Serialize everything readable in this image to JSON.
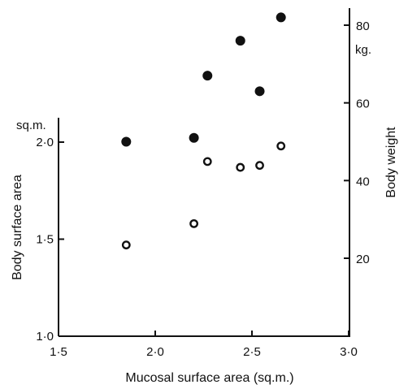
{
  "chart_data": {
    "type": "scatter",
    "xlabel": "Mucosal surface area (sq.m.)",
    "ylabel_left": "Body surface area",
    "ylabel_left_unit": "sq.m.",
    "ylabel_right": "Body weight",
    "ylabel_right_unit": "kg.",
    "xlim": [
      1.5,
      3.0
    ],
    "ylim_left": [
      1.0,
      2.1
    ],
    "ylim_right": [
      0,
      85
    ],
    "x_ticks": [
      {
        "value": 1.5,
        "label": "1·5"
      },
      {
        "value": 2.0,
        "label": "2·0"
      },
      {
        "value": 2.5,
        "label": "2·5"
      },
      {
        "value": 3.0,
        "label": "3·0"
      }
    ],
    "y_left_ticks": [
      {
        "value": 1.0,
        "label": "1·0"
      },
      {
        "value": 1.5,
        "label": "1·5"
      },
      {
        "value": 2.0,
        "label": "2·0"
      }
    ],
    "y_right_ticks": [
      {
        "value": 20,
        "label": "20"
      },
      {
        "value": 40,
        "label": "40"
      },
      {
        "value": 60,
        "label": "60"
      },
      {
        "value": 80,
        "label": "80"
      }
    ],
    "grid": false,
    "series": [
      {
        "marker": "open-circle",
        "axis": "left",
        "x": [
          1.85,
          2.2,
          2.27,
          2.44,
          2.54,
          2.65
        ],
        "y": [
          1.47,
          1.58,
          1.9,
          1.87,
          1.88,
          1.98
        ]
      },
      {
        "marker": "filled-circle",
        "axis": "right",
        "x": [
          1.85,
          2.2,
          2.27,
          2.44,
          2.54,
          2.65
        ],
        "y": [
          50,
          51,
          67,
          76,
          63,
          82
        ]
      }
    ]
  }
}
